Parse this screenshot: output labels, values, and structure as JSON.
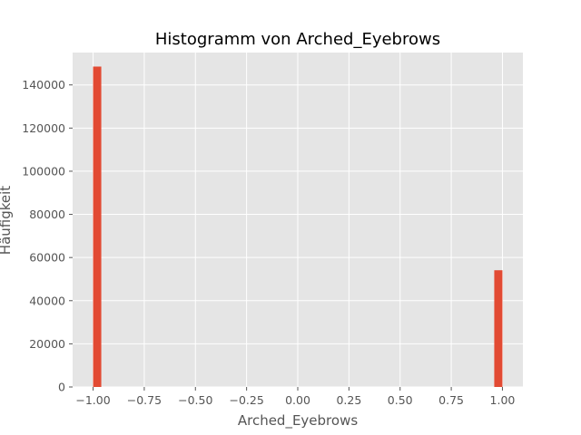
{
  "chart_data": {
    "type": "bar",
    "title": "Histogramm von Arched_Eyebrows",
    "xlabel": "Arched_Eyebrows",
    "ylabel": "Häufigkeit",
    "xlim": [
      -1.1,
      1.1
    ],
    "ylim": [
      0,
      155000
    ],
    "x_ticks": [
      -1.0,
      -0.75,
      -0.5,
      -0.25,
      0.0,
      0.25,
      0.5,
      0.75,
      1.0
    ],
    "x_tick_labels": [
      "−1.00",
      "−0.75",
      "−0.50",
      "−0.25",
      "0.00",
      "0.25",
      "0.50",
      "0.75",
      "1.00"
    ],
    "y_ticks": [
      0,
      20000,
      40000,
      60000,
      80000,
      100000,
      120000,
      140000
    ],
    "y_tick_labels": [
      "0",
      "20000",
      "40000",
      "60000",
      "80000",
      "100000",
      "120000",
      "140000"
    ],
    "bin_width": 0.04,
    "bars": [
      {
        "x_start": -1.0,
        "x_end": -0.96,
        "value": 148500
      },
      {
        "x_start": 0.96,
        "x_end": 1.0,
        "value": 54100
      }
    ],
    "grid": true,
    "colors": {
      "bar": "#E24A33",
      "plot_background": "#E5E5E5",
      "grid": "#FFFFFF"
    }
  }
}
